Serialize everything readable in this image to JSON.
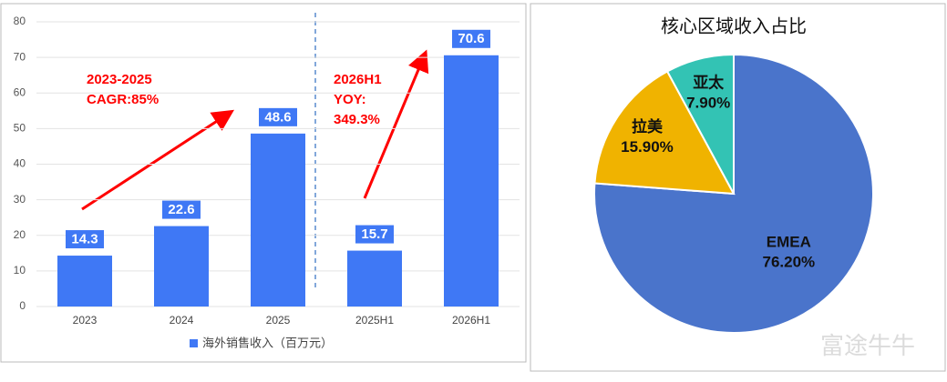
{
  "chart_data": [
    {
      "type": "bar",
      "categories": [
        "2023",
        "2024",
        "2025",
        "2025H1",
        "2026H1"
      ],
      "series": [
        {
          "name": "海外销售收入（百万元）",
          "color": "#3f78f5",
          "values": [
            14.3,
            22.6,
            48.6,
            15.7,
            70.6
          ]
        }
      ],
      "ylim": [
        0,
        80
      ],
      "yticks": [
        0,
        10,
        20,
        30,
        40,
        50,
        60,
        70,
        80
      ],
      "grid": true,
      "annotations": [
        [
          "2023-2025",
          "CAGR:85%"
        ],
        [
          "2026H1",
          "YOY:",
          "349.3%"
        ]
      ]
    },
    {
      "type": "pie",
      "title": "核心区域收入占比",
      "categories": [
        "EMEA",
        "拉美",
        "亚太"
      ],
      "values": [
        76.2,
        15.9,
        7.9
      ],
      "value_labels": [
        "76.20%",
        "15.90%",
        "7.90%"
      ],
      "colors": [
        "#4a74cb",
        "#f0b300",
        "#33c3b4"
      ],
      "watermark": "富途牛牛"
    }
  ]
}
